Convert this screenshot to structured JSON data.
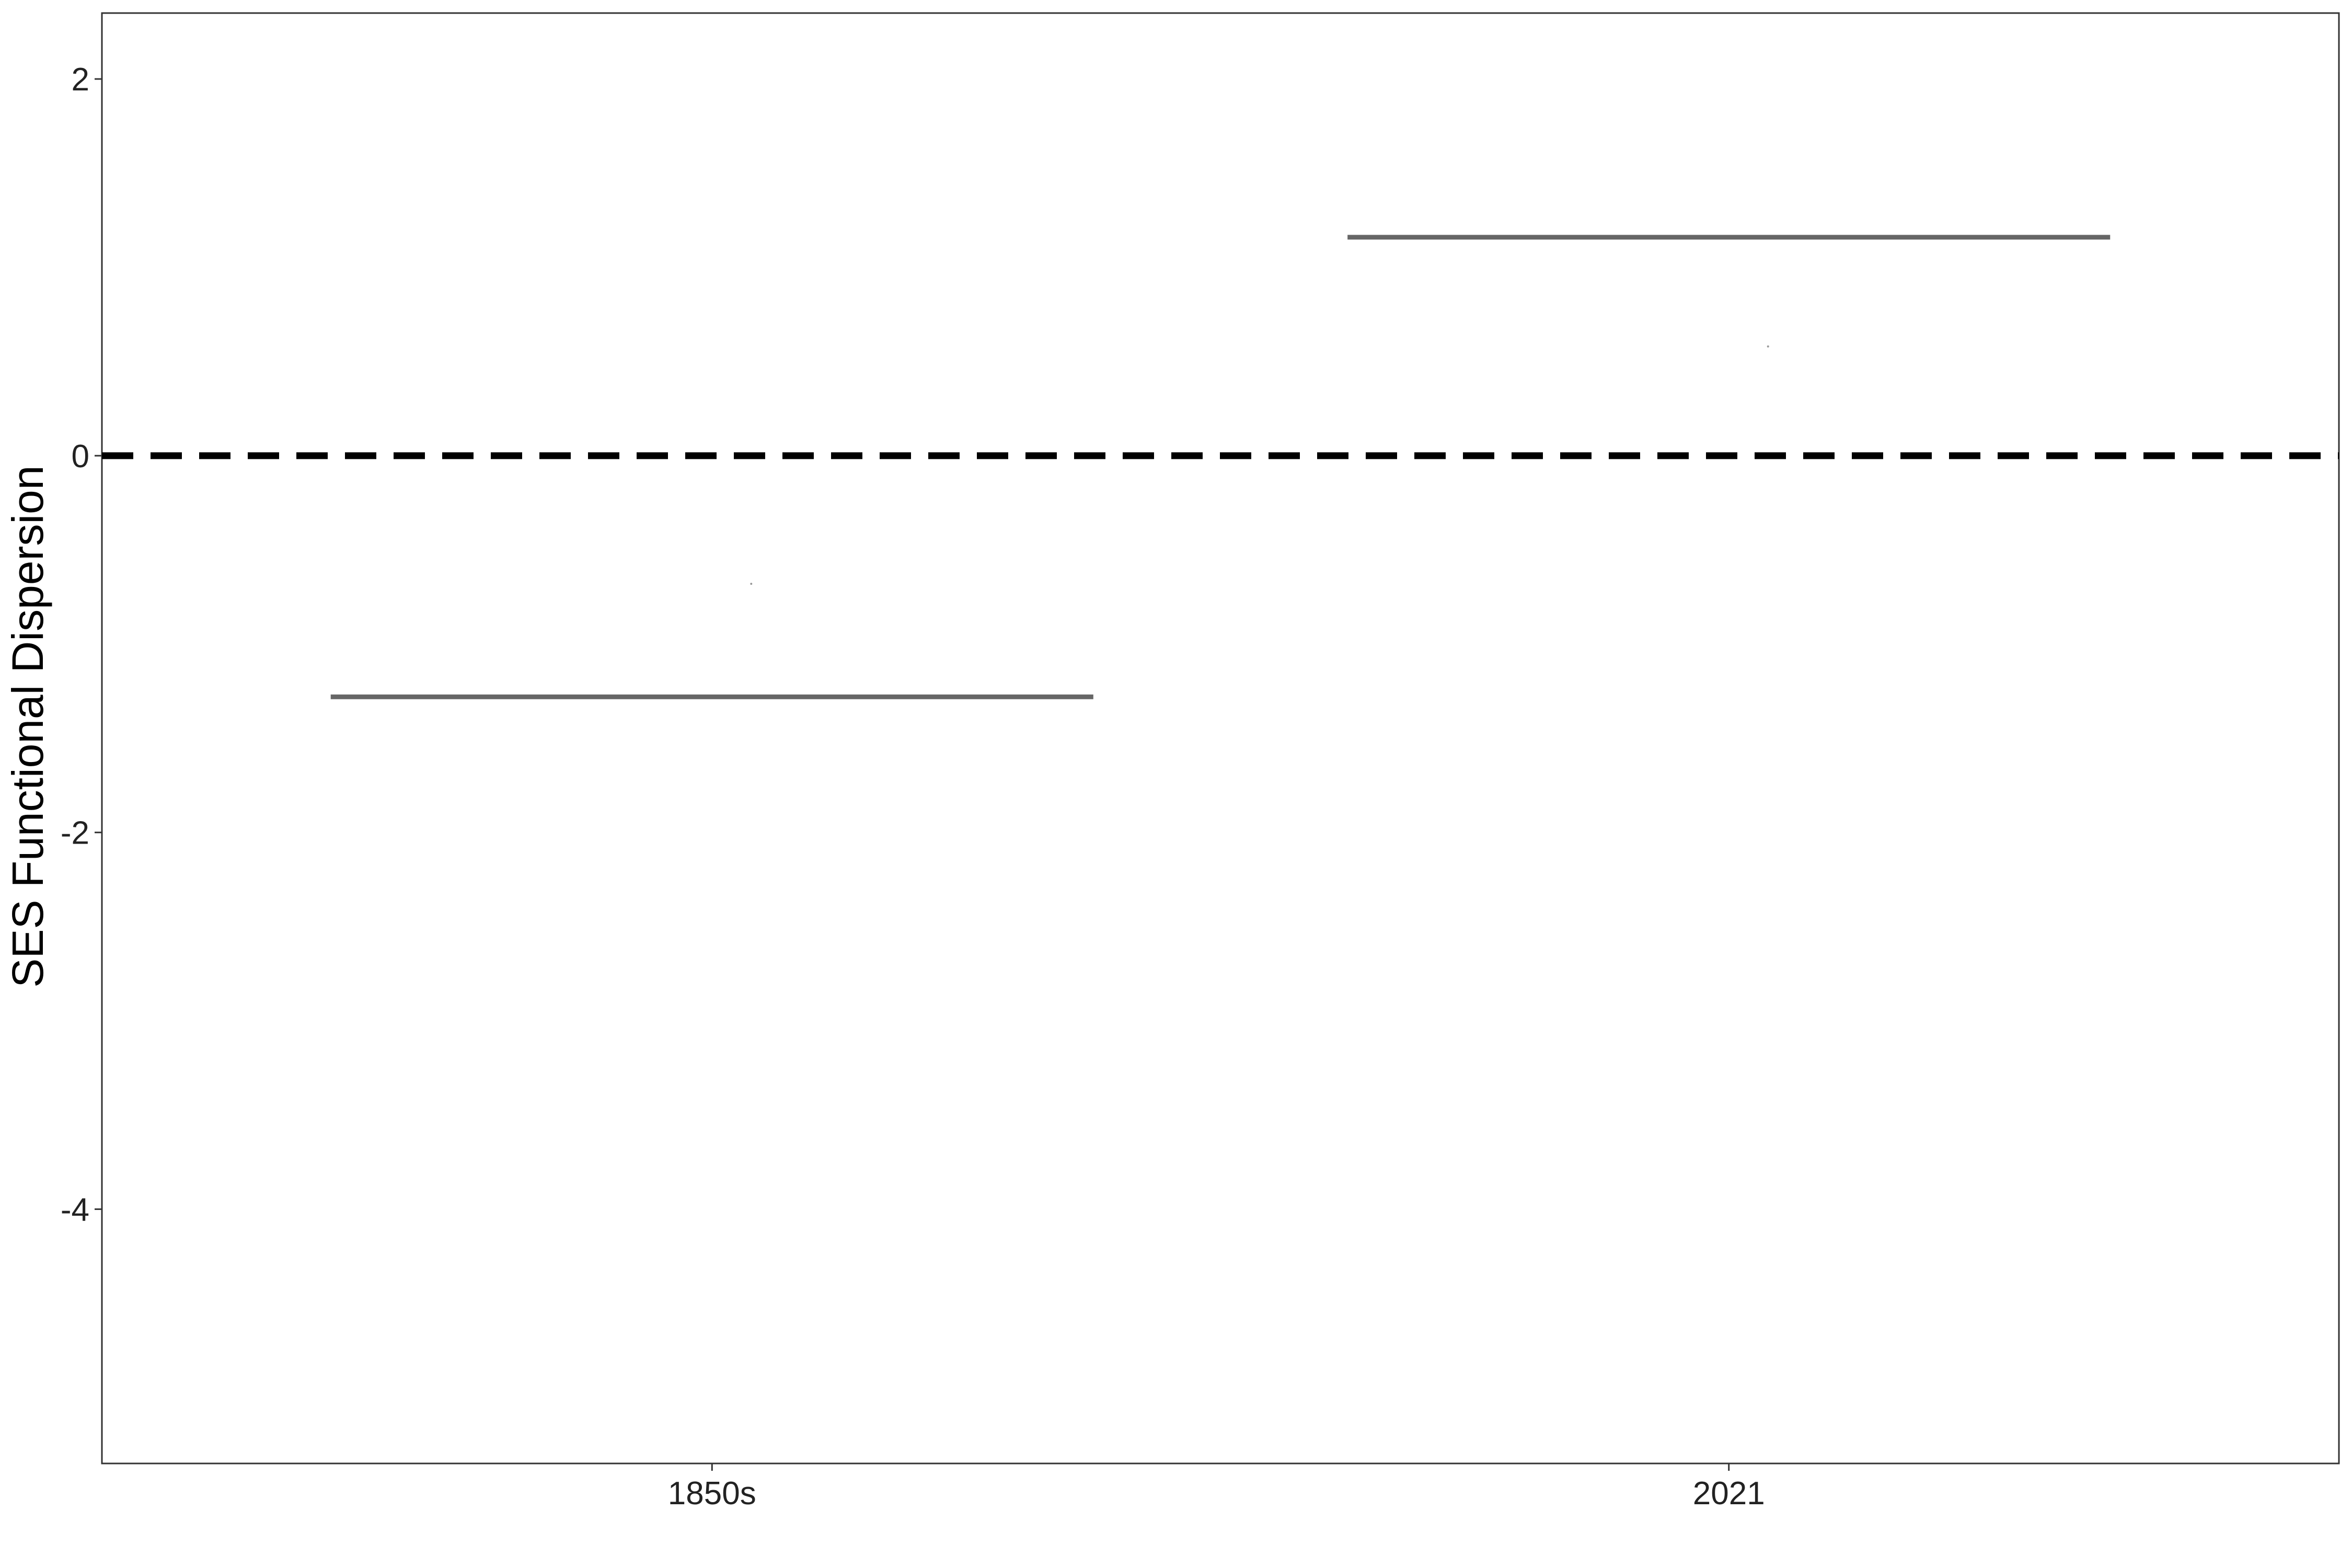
{
  "chart_data": {
    "type": "bar",
    "geom": "crossbar",
    "title": "",
    "xlabel": "",
    "ylabel": "SES Functional Dispersion",
    "categories": [
      "1850s",
      "2021"
    ],
    "series": [
      {
        "values": [
          -1.28,
          1.16
        ],
        "color": "#666666"
      }
    ],
    "points": [
      {
        "category": "1850s",
        "y": -0.68
      },
      {
        "category": "2021",
        "y": 0.58
      }
    ],
    "ylim": [
      -5.35,
      2.35
    ],
    "yticks": [
      2,
      0,
      -2,
      -4
    ],
    "ytick_labels": [
      "2",
      "0",
      "-2",
      "-4"
    ],
    "reference_line": {
      "y": 0,
      "style": "dashed",
      "color": "#000000"
    },
    "grid": false,
    "legend": "none"
  }
}
